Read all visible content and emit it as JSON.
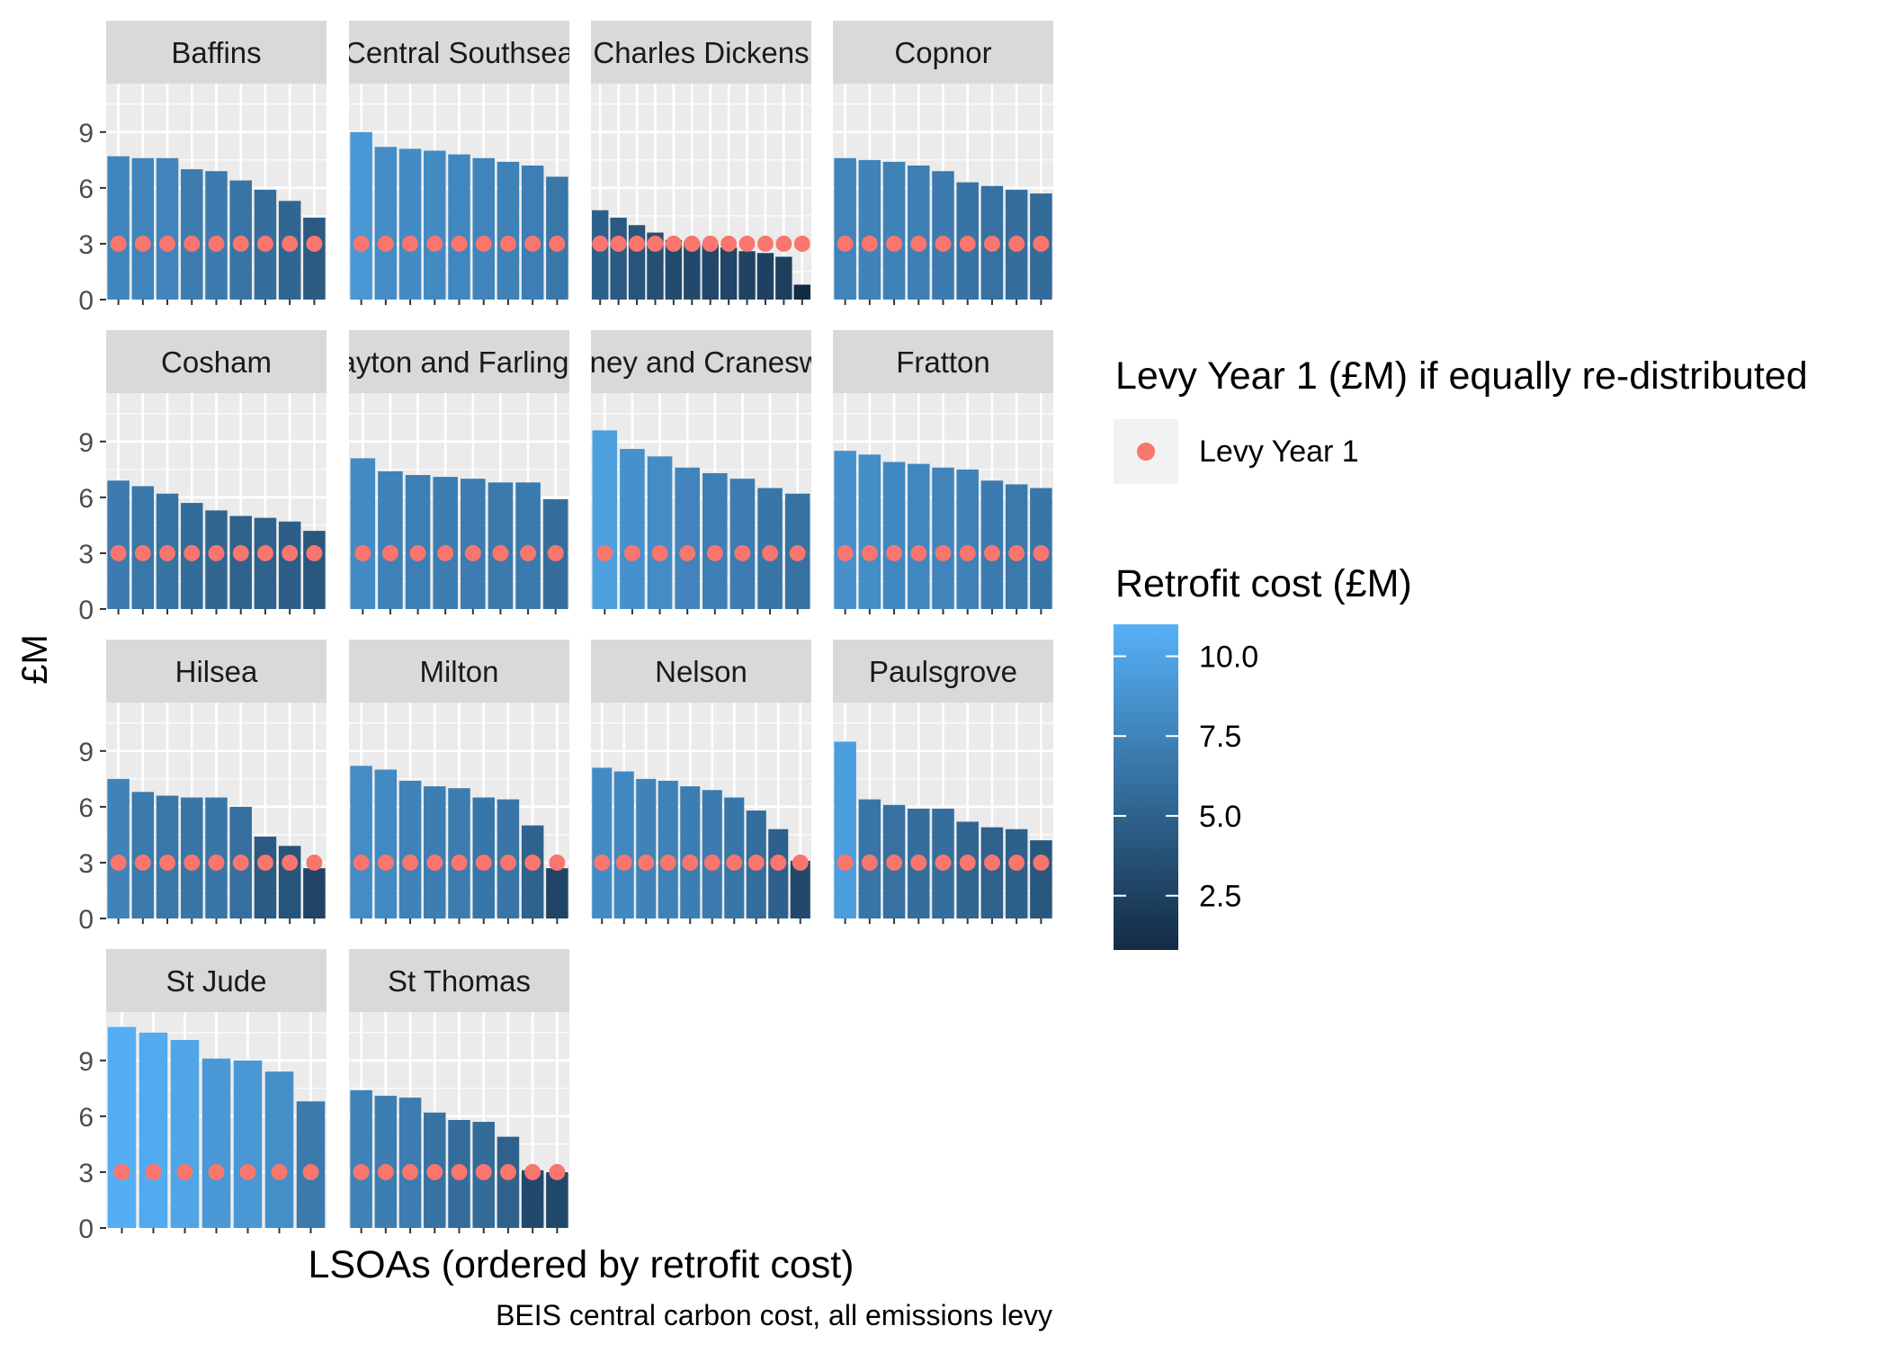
{
  "chart_data": {
    "type": "bar",
    "xlabel": "LSOAs (ordered by retrofit cost)",
    "ylabel": "£M",
    "caption": "BEIS central carbon cost, all emissions levy",
    "ylim": [
      0,
      11.6
    ],
    "yticks": [
      "0",
      "3",
      "6",
      "9"
    ],
    "levy_value": 3.0,
    "legend": {
      "points_title": "Levy Year 1 (£M) if equally re-distributed",
      "points_label": "Levy Year 1",
      "fill_title": "Retrofit cost (£M)",
      "fill_ticks": [
        "10.0",
        "7.5",
        "5.0",
        "2.5"
      ],
      "fill_range": [
        0.8,
        11.0
      ]
    },
    "colors": {
      "low": "#132B43",
      "high": "#56B1F7",
      "levy_point": "#F8766D",
      "panel_bg": "#EBEBEB",
      "strip_bg": "#D9D9D9"
    },
    "grid": true,
    "panels": [
      {
        "name": "Baffins",
        "values": [
          7.7,
          7.6,
          7.6,
          7.0,
          6.9,
          6.4,
          5.9,
          5.3,
          4.4
        ]
      },
      {
        "name": "Central Southsea",
        "values": [
          9.0,
          8.2,
          8.1,
          8.0,
          7.8,
          7.6,
          7.4,
          7.2,
          6.6
        ]
      },
      {
        "name": "Charles Dickens",
        "values": [
          4.8,
          4.4,
          4.0,
          3.6,
          3.2,
          3.1,
          3.0,
          2.8,
          2.6,
          2.5,
          2.3,
          0.8
        ]
      },
      {
        "name": "Copnor",
        "values": [
          7.6,
          7.5,
          7.4,
          7.2,
          6.9,
          6.3,
          6.1,
          5.9,
          5.7
        ]
      },
      {
        "name": "Cosham",
        "values": [
          6.9,
          6.6,
          6.2,
          5.7,
          5.3,
          5.0,
          4.9,
          4.7,
          4.2
        ]
      },
      {
        "name": "Drayton and Farlington",
        "values": [
          8.1,
          7.4,
          7.2,
          7.1,
          7.0,
          6.8,
          6.8,
          5.9
        ]
      },
      {
        "name": "Eastney and Craneswater",
        "values": [
          9.6,
          8.6,
          8.2,
          7.6,
          7.3,
          7.0,
          6.5,
          6.2
        ]
      },
      {
        "name": "Fratton",
        "values": [
          8.5,
          8.3,
          7.9,
          7.8,
          7.6,
          7.5,
          6.9,
          6.7,
          6.5
        ]
      },
      {
        "name": "Hilsea",
        "values": [
          7.5,
          6.8,
          6.6,
          6.5,
          6.5,
          6.0,
          4.4,
          3.9,
          2.7
        ]
      },
      {
        "name": "Milton",
        "values": [
          8.2,
          8.0,
          7.4,
          7.1,
          7.0,
          6.5,
          6.4,
          5.0,
          2.7
        ]
      },
      {
        "name": "Nelson",
        "values": [
          8.1,
          7.9,
          7.5,
          7.4,
          7.1,
          6.9,
          6.5,
          5.8,
          4.8,
          3.1
        ]
      },
      {
        "name": "Paulsgrove",
        "values": [
          9.5,
          6.4,
          6.1,
          5.9,
          5.9,
          5.2,
          4.9,
          4.8,
          4.2
        ]
      },
      {
        "name": "St Jude",
        "values": [
          10.8,
          10.5,
          10.1,
          9.1,
          9.0,
          8.4,
          6.8
        ]
      },
      {
        "name": "St Thomas",
        "values": [
          7.4,
          7.1,
          7.0,
          6.2,
          5.8,
          5.7,
          4.9,
          3.1,
          3.0
        ]
      }
    ]
  }
}
